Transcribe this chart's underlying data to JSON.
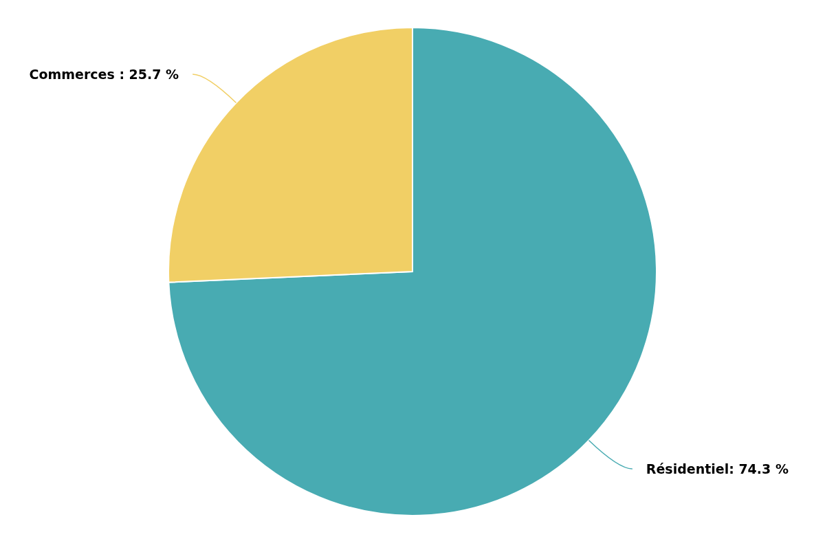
{
  "chart_data": {
    "type": "pie",
    "categories": [
      "Résidentiel",
      "Commerces"
    ],
    "values": [
      74.3,
      25.7
    ],
    "value_labels": [
      "74.3 %",
      "25.7 %"
    ],
    "colors": [
      "#48abb2",
      "#f1cf65"
    ]
  }
}
